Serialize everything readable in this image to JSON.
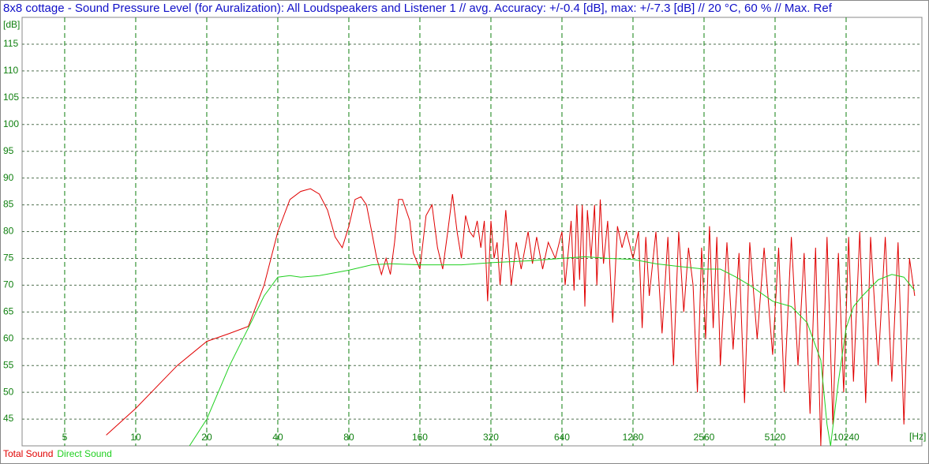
{
  "chart_data": {
    "type": "line",
    "title": "8x8 cottage - Sound Pressure Level (for Auralization):  All Loudspeakers and Listener 1 // avg. Accuracy: +/-0.4 [dB], max: +/-7.3 [dB] // 20 °C, 60 % // Max. Ref",
    "y_label": "[dB]",
    "x_label": "[Hz]",
    "log_x": true,
    "grid": true,
    "xlim": [
      3.3,
      21450
    ],
    "ylim": [
      40,
      120
    ],
    "xticks": [
      5,
      10,
      20,
      40,
      80,
      160,
      320,
      640,
      1280,
      2560,
      5120,
      10240
    ],
    "yticks": [
      45,
      50,
      55,
      60,
      65,
      70,
      75,
      80,
      85,
      90,
      95,
      100,
      105,
      110,
      115
    ],
    "series": [
      {
        "name": "Total Sound",
        "color": "#e00000",
        "x": [
          7.5,
          10,
          15,
          20,
          25,
          30,
          35,
          40,
          45,
          50,
          55,
          60,
          65,
          70,
          75,
          80,
          85,
          90,
          95,
          100,
          105,
          110,
          115,
          120,
          125,
          130,
          135,
          145,
          150,
          160,
          170,
          180,
          190,
          200,
          210,
          220,
          230,
          240,
          250,
          260,
          270,
          280,
          290,
          300,
          310,
          320,
          330,
          340,
          350,
          370,
          390,
          410,
          430,
          460,
          480,
          500,
          530,
          560,
          600,
          640,
          660,
          700,
          720,
          740,
          760,
          780,
          800,
          820,
          850,
          880,
          900,
          930,
          960,
          1000,
          1050,
          1100,
          1150,
          1200,
          1280,
          1350,
          1400,
          1450,
          1500,
          1600,
          1700,
          1800,
          1900,
          2000,
          2100,
          2200,
          2300,
          2400,
          2500,
          2600,
          2700,
          2800,
          2900,
          3000,
          3200,
          3400,
          3600,
          3800,
          4000,
          4300,
          4600,
          5000,
          5300,
          5600,
          6000,
          6400,
          6800,
          7200,
          7600,
          8000,
          8500,
          9000,
          9500,
          10000,
          10500,
          11000,
          11700,
          12400,
          13000,
          14000,
          15000,
          16000,
          17000,
          18000,
          19000,
          20000
        ],
        "values": [
          42,
          47,
          55,
          59.5,
          61,
          62.3,
          70,
          80,
          86,
          87.5,
          88,
          87,
          84,
          79,
          77,
          81,
          86,
          86.5,
          85,
          80,
          75,
          72,
          75,
          72,
          78,
          86,
          86,
          82,
          76,
          73,
          83,
          85,
          77,
          73,
          80,
          87,
          80,
          75,
          83,
          80,
          79,
          82,
          77,
          82,
          67,
          82,
          75,
          78,
          70,
          84,
          70,
          78,
          73,
          80,
          74,
          79,
          73,
          78,
          75,
          80,
          70,
          82,
          69,
          85,
          71,
          85,
          66,
          84,
          75,
          85,
          70,
          86,
          74,
          82,
          63,
          81,
          77,
          80,
          75,
          80,
          62,
          79,
          68,
          80,
          61,
          79,
          55,
          80,
          65,
          77,
          70,
          50,
          77,
          60,
          81,
          62,
          79,
          55,
          78,
          58,
          76,
          48,
          78,
          60,
          77,
          57,
          77,
          50,
          79,
          55,
          76,
          46,
          77,
          40,
          79,
          44,
          76,
          50,
          79,
          52,
          80,
          48,
          79,
          55,
          79,
          52,
          78,
          44,
          75,
          68
        ]
      },
      {
        "name": "Direct Sound",
        "color": "#20d020",
        "x": [
          16.9,
          20,
          25,
          30,
          35,
          40,
          45,
          50,
          60,
          80,
          100,
          120,
          160,
          240,
          320,
          480,
          640,
          800,
          1000,
          1280,
          1600,
          2000,
          2560,
          3000,
          3500,
          4000,
          5000,
          6000,
          7000,
          8000,
          8500,
          8800,
          9500,
          10240,
          11000,
          12000,
          14000,
          16000,
          18000,
          20000
        ],
        "values": [
          40,
          45,
          55,
          62,
          68,
          71.5,
          71.8,
          71.5,
          71.8,
          72.8,
          73.8,
          74,
          73.8,
          73.8,
          74.2,
          74.6,
          75,
          75.3,
          75,
          74.8,
          74,
          73.5,
          73,
          73,
          71.5,
          70,
          67,
          66,
          63,
          56,
          44,
          40,
          52,
          62,
          66,
          68,
          71,
          72,
          71.5,
          69
        ]
      }
    ]
  }
}
